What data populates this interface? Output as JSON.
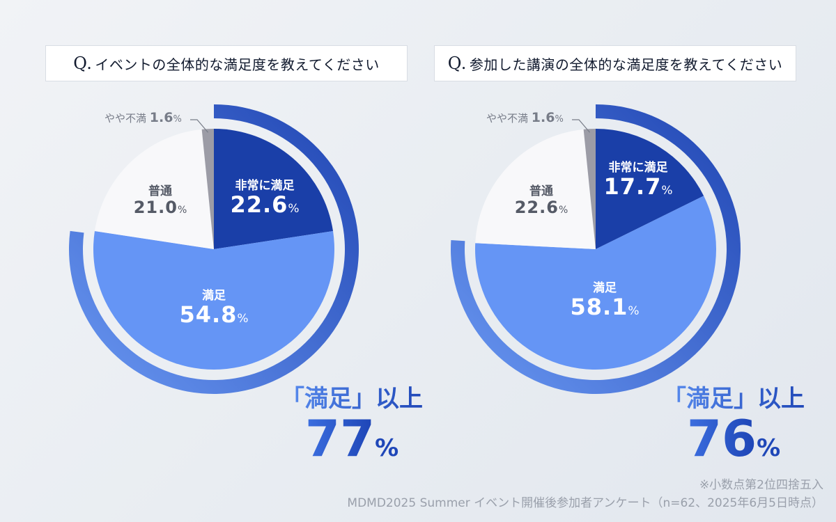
{
  "chart_data": [
    {
      "type": "pie",
      "title": "イベントの全体的な満足度を教えてください",
      "title_prefix": "Q.",
      "categories": [
        "非常に満足",
        "満足",
        "普通",
        "やや不満"
      ],
      "values": [
        22.6,
        54.8,
        21.0,
        1.6
      ],
      "colors": [
        "#1a3fa8",
        "#6595f5",
        "#f8f8fa",
        "#9c9ca6"
      ],
      "summary": {
        "label": "「満足」以上",
        "value": 77,
        "unit": "%"
      }
    },
    {
      "type": "pie",
      "title": "参加した講演の全体的な満足度を教えてください",
      "title_prefix": "Q.",
      "categories": [
        "非常に満足",
        "満足",
        "普通",
        "やや不満"
      ],
      "values": [
        17.7,
        58.1,
        22.6,
        1.6
      ],
      "colors": [
        "#1a3fa8",
        "#6595f5",
        "#f8f8fa",
        "#9c9ca6"
      ],
      "summary": {
        "label": "「満足」以上",
        "value": 76,
        "unit": "%"
      }
    }
  ],
  "unit": "%",
  "ring_colors": [
    "#6a98f2",
    "#1f44b2"
  ],
  "footnote": {
    "line1": "※小数点第2位四捨五入",
    "line2": "MDMD2025 Summer イベント開催後参加者アンケート（n=62、2025年6月5日時点）"
  }
}
